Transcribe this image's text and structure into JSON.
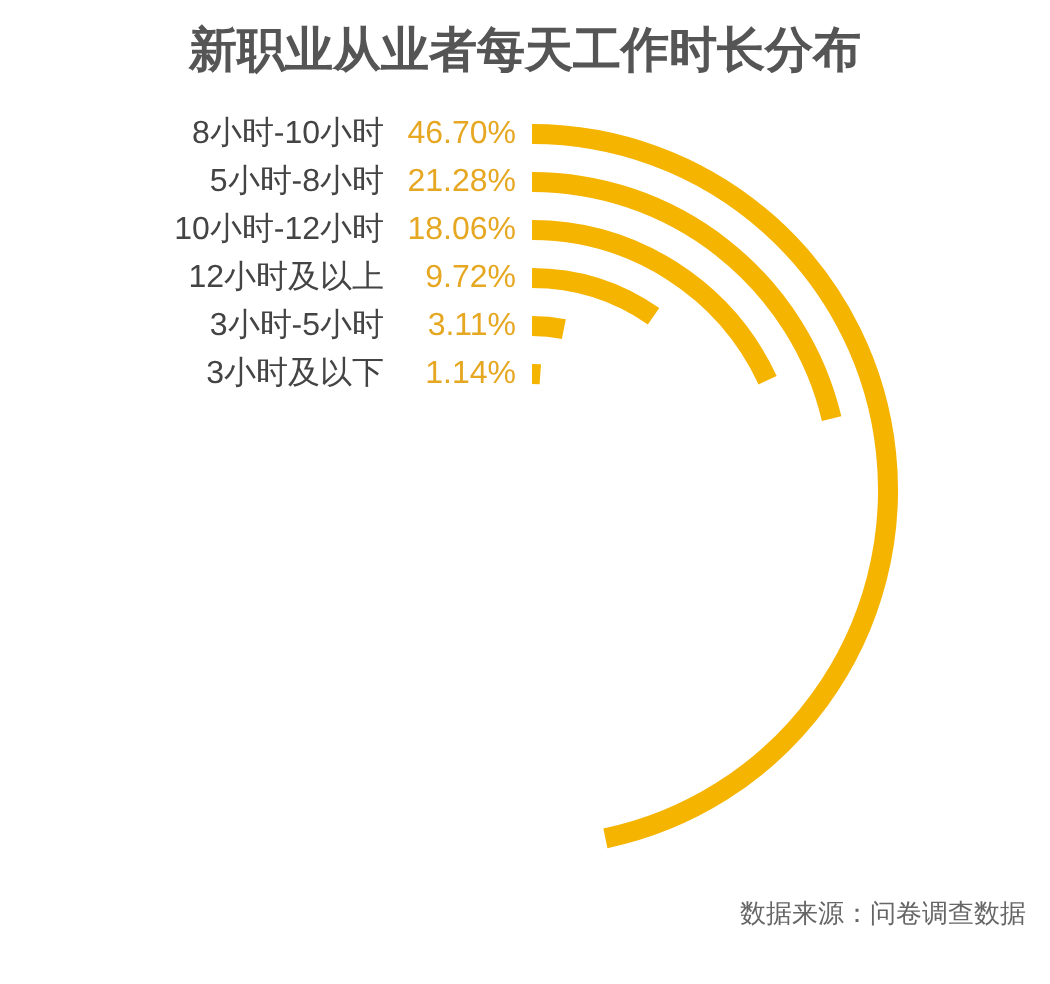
{
  "chart_data": {
    "type": "other",
    "title": "新职业从业者每天工作时长分布",
    "categories": [
      "8小时-10小时",
      "5小时-8小时",
      "10小时-12小时",
      "12小时及以上",
      "3小时-5小时",
      "3小时及以下"
    ],
    "values": [
      46.7,
      21.28,
      18.06,
      9.72,
      3.11,
      1.14
    ],
    "value_labels": [
      "46.70%",
      "21.28%",
      "18.06%",
      "9.72%",
      "3.11%",
      "1.14%"
    ],
    "color": "#f5b400",
    "annotations": [
      "数据来源：问卷调查数据"
    ]
  }
}
